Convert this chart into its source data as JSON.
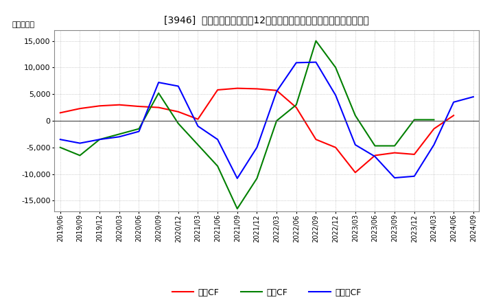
{
  "title": "[3946]  キャッシュフローの12か月移動合計の対前年同期増減額の推移",
  "ylabel": "（百万円）",
  "background_color": "#ffffff",
  "plot_background_color": "#ffffff",
  "x_labels": [
    "2019/06",
    "2019/09",
    "2019/12",
    "2020/03",
    "2020/06",
    "2020/09",
    "2020/12",
    "2021/03",
    "2021/06",
    "2021/09",
    "2021/12",
    "2022/03",
    "2022/06",
    "2022/09",
    "2022/12",
    "2023/03",
    "2023/06",
    "2023/09",
    "2023/12",
    "2024/03",
    "2024/06",
    "2024/09"
  ],
  "operating_cf": [
    1500,
    2300,
    2800,
    3000,
    2700,
    2500,
    1700,
    300,
    5800,
    6100,
    6000,
    5700,
    2500,
    -3500,
    -5000,
    -9700,
    -6500,
    -6000,
    -6300,
    -1500,
    1000,
    null
  ],
  "investing_cf": [
    -5000,
    -6500,
    -3500,
    -2500,
    -1500,
    5200,
    -500,
    -4500,
    -8500,
    -16500,
    -10800,
    0,
    3000,
    15000,
    10000,
    1000,
    -4700,
    -4700,
    200,
    200,
    null,
    null
  ],
  "free_cf": [
    -3500,
    -4200,
    -3500,
    -3000,
    -2000,
    7200,
    6500,
    -1000,
    -3500,
    -10800,
    -5000,
    5500,
    10900,
    11000,
    4800,
    -4500,
    -6700,
    -10700,
    -10400,
    -4500,
    3500,
    4500
  ],
  "operating_color": "#ff0000",
  "investing_color": "#008000",
  "free_color": "#0000ff",
  "ylim": [
    -17000,
    17000
  ],
  "yticks": [
    -15000,
    -10000,
    -5000,
    0,
    5000,
    10000,
    15000
  ],
  "line_width": 1.5,
  "grid_color": "#aaaaaa",
  "zero_line_color": "#555555",
  "legend_labels": [
    "営業CF",
    "投資CF",
    "フリーCF"
  ]
}
